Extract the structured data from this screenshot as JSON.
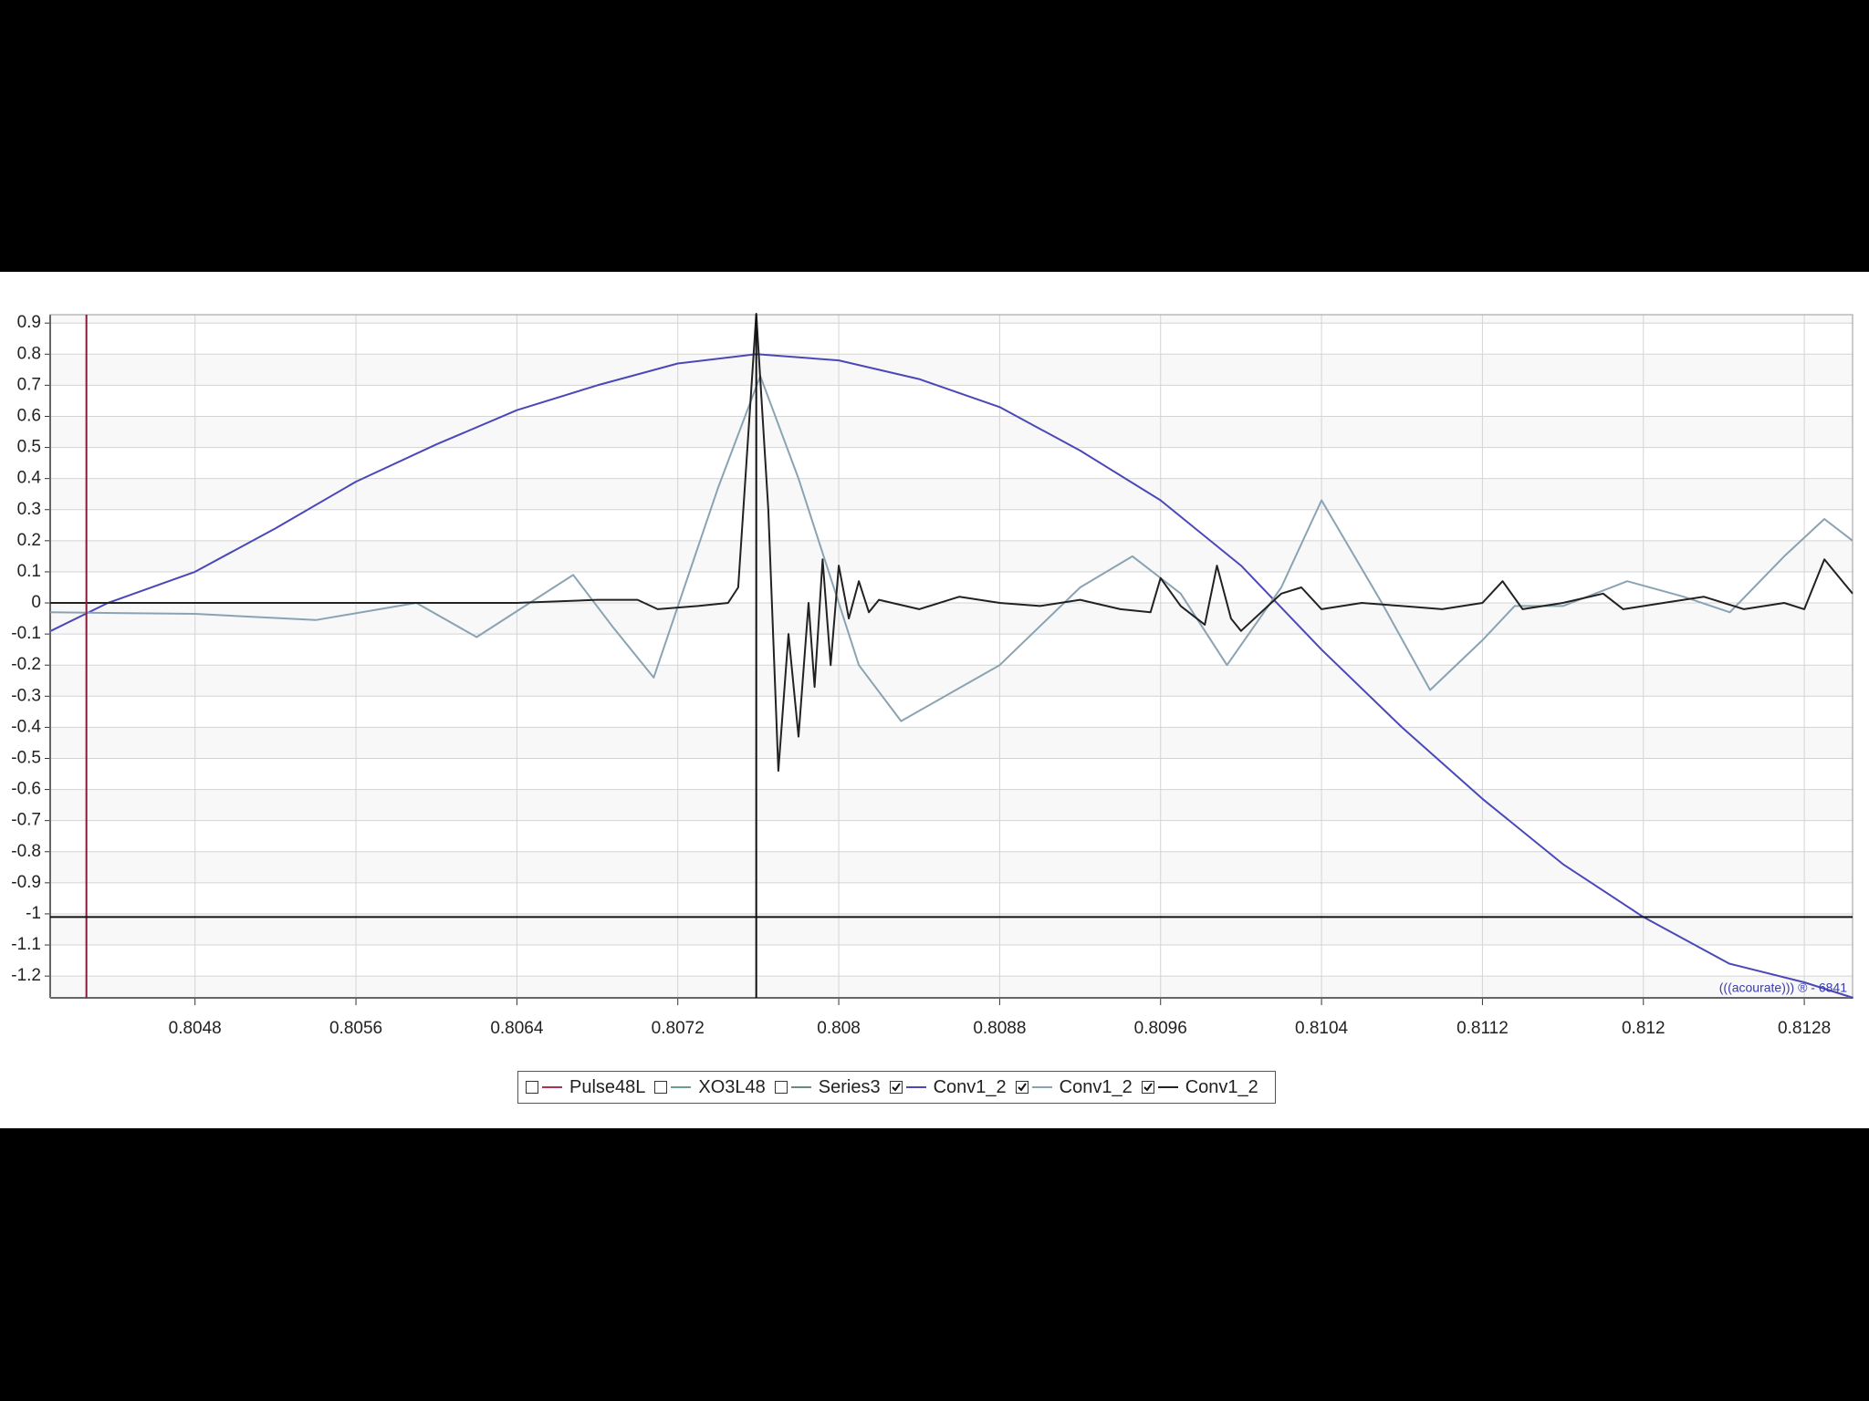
{
  "chart_data": {
    "type": "line",
    "xlim": [
      0.80408,
      0.81304
    ],
    "ylim": [
      -1.27,
      0.927
    ],
    "xticks": [
      0.8048,
      0.8056,
      0.8064,
      0.8072,
      0.808,
      0.8088,
      0.8096,
      0.8104,
      0.8112,
      0.812,
      0.8128
    ],
    "yticks": [
      0.9,
      0.8,
      0.7,
      0.6,
      0.5,
      0.4,
      0.3,
      0.2,
      0.1,
      0,
      -0.1,
      -0.2,
      -0.3,
      -0.4,
      -0.5,
      -0.6,
      -0.7,
      -0.8,
      -0.9,
      -1,
      -1.1,
      -1.2
    ],
    "grid": true,
    "annotation": "(((acourate))) ® - 6841",
    "vlines": [
      {
        "x": 0.80426,
        "color": "#8b1a3a"
      },
      {
        "x": 0.80759,
        "color": "#111111"
      }
    ],
    "hlines": [
      {
        "y": -1.01,
        "color": "#111111"
      }
    ],
    "series": [
      {
        "name": "Pulse48L",
        "color": "#b03050",
        "visible": false
      },
      {
        "name": "XO3L48",
        "color": "#6aa08a",
        "visible": false
      },
      {
        "name": "Series3",
        "color": "#6a8a7a",
        "visible": false
      },
      {
        "name": "Conv1_2",
        "color": "#4a48b8",
        "visible": true,
        "x": [
          0.804083,
          0.804367,
          0.8048,
          0.8052,
          0.8056,
          0.806,
          0.8064,
          0.8068,
          0.8072,
          0.807591,
          0.808,
          0.8084,
          0.8088,
          0.8092,
          0.8096,
          0.81,
          0.8104,
          0.8108,
          0.8112,
          0.8116,
          0.812,
          0.812427,
          0.8128,
          0.813043
        ],
        "values": [
          -0.09,
          0,
          0.1,
          0.24,
          0.39,
          0.51,
          0.62,
          0.7,
          0.77,
          0.8,
          0.78,
          0.72,
          0.63,
          0.49,
          0.33,
          0.12,
          -0.15,
          -0.4,
          -0.63,
          -0.84,
          -1.01,
          -1.16,
          -1.22,
          -1.27
        ]
      },
      {
        "name": "Conv1_2",
        "color": "#8aa3b3",
        "visible": true,
        "x": [
          0.80408,
          0.8048,
          0.8054,
          0.8059,
          0.8062,
          0.80644,
          0.80668,
          0.80688,
          0.80708,
          0.8074,
          0.80761,
          0.8078,
          0.808,
          0.8081,
          0.80831,
          0.8088,
          0.8092,
          0.80946,
          0.8097,
          0.80993,
          0.8102,
          0.8104,
          0.8107,
          0.81094,
          0.8112,
          0.81136,
          0.8116,
          0.81192,
          0.8122,
          0.81243,
          0.8127,
          0.8129,
          0.81304
        ],
        "values": [
          -0.03,
          -0.035,
          -0.055,
          0,
          -0.11,
          -0.01,
          0.09,
          -0.08,
          -0.24,
          0.37,
          0.73,
          0.4,
          0,
          -0.2,
          -0.38,
          -0.2,
          0.05,
          0.15,
          0.03,
          -0.2,
          0.05,
          0.33,
          0,
          -0.28,
          -0.12,
          -0.01,
          -0.01,
          0.07,
          0.02,
          -0.03,
          0.15,
          0.27,
          0.2
        ]
      },
      {
        "name": "Conv1_2",
        "color": "#222222",
        "visible": true,
        "x": [
          0.80408,
          0.806,
          0.8064,
          0.8068,
          0.807,
          0.8071,
          0.8073,
          0.80745,
          0.8075,
          0.80759,
          0.80765,
          0.8077,
          0.80775,
          0.8078,
          0.80785,
          0.80788,
          0.80792,
          0.80796,
          0.808,
          0.80805,
          0.8081,
          0.80815,
          0.8082,
          0.8084,
          0.8086,
          0.8088,
          0.809,
          0.8092,
          0.8094,
          0.80955,
          0.8096,
          0.8097,
          0.80982,
          0.80988,
          0.80995,
          0.81,
          0.8102,
          0.8103,
          0.8104,
          0.8106,
          0.8108,
          0.811,
          0.8112,
          0.8113,
          0.8114,
          0.8116,
          0.8118,
          0.8119,
          0.8121,
          0.8123,
          0.8125,
          0.8127,
          0.8128,
          0.8129,
          0.81304
        ],
        "values": [
          0,
          0,
          0,
          0.01,
          0.01,
          -0.02,
          -0.01,
          0,
          0.05,
          0.93,
          0.3,
          -0.54,
          -0.1,
          -0.43,
          0,
          -0.27,
          0.14,
          -0.2,
          0.12,
          -0.05,
          0.07,
          -0.03,
          0.01,
          -0.02,
          0.02,
          0,
          -0.01,
          0.01,
          -0.02,
          -0.03,
          0.08,
          -0.01,
          -0.07,
          0.12,
          -0.05,
          -0.09,
          0.03,
          0.05,
          -0.02,
          0,
          -0.01,
          -0.02,
          0,
          0.07,
          -0.02,
          0,
          0.03,
          -0.02,
          0,
          0.02,
          -0.02,
          0,
          -0.02,
          0.14,
          0.03
        ]
      }
    ]
  }
}
